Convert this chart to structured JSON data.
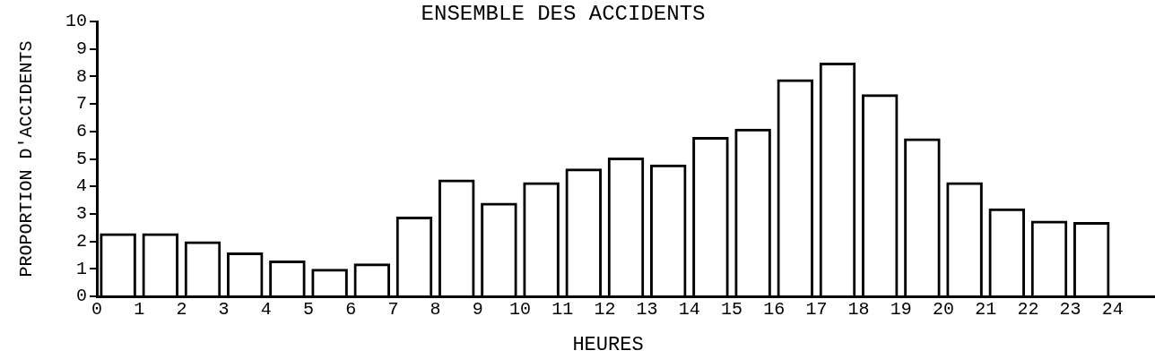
{
  "chart_data": {
    "type": "bar",
    "title": "ENSEMBLE DES ACCIDENTS",
    "xlabel": "HEURES",
    "ylabel": "PROPORTION D'ACCIDENTS",
    "x": [
      0.5,
      1.5,
      2.5,
      3.5,
      4.5,
      5.5,
      6.5,
      7.5,
      8.5,
      9.5,
      10.5,
      11.5,
      12.5,
      13.5,
      14.5,
      15.5,
      16.5,
      17.5,
      18.5,
      19.5,
      20.5,
      21.5,
      22.5,
      23.5
    ],
    "values": [
      2.3,
      2.3,
      2.0,
      1.6,
      1.3,
      1.0,
      1.2,
      2.9,
      4.25,
      3.4,
      4.15,
      4.65,
      5.05,
      4.8,
      5.8,
      6.1,
      7.9,
      8.5,
      7.35,
      5.75,
      4.15,
      3.2,
      2.75,
      2.7
    ],
    "color": "#000000",
    "xlim": [
      0,
      25
    ],
    "xticks": [
      0,
      1,
      2,
      3,
      4,
      5,
      6,
      7,
      8,
      9,
      10,
      11,
      12,
      13,
      14,
      15,
      16,
      17,
      18,
      19,
      20,
      21,
      22,
      23,
      24
    ],
    "ylim": [
      0,
      10
    ],
    "yticks": [
      0,
      1,
      2,
      3,
      4,
      5,
      6,
      7,
      8,
      9,
      10
    ],
    "grid": false,
    "legend": false
  }
}
